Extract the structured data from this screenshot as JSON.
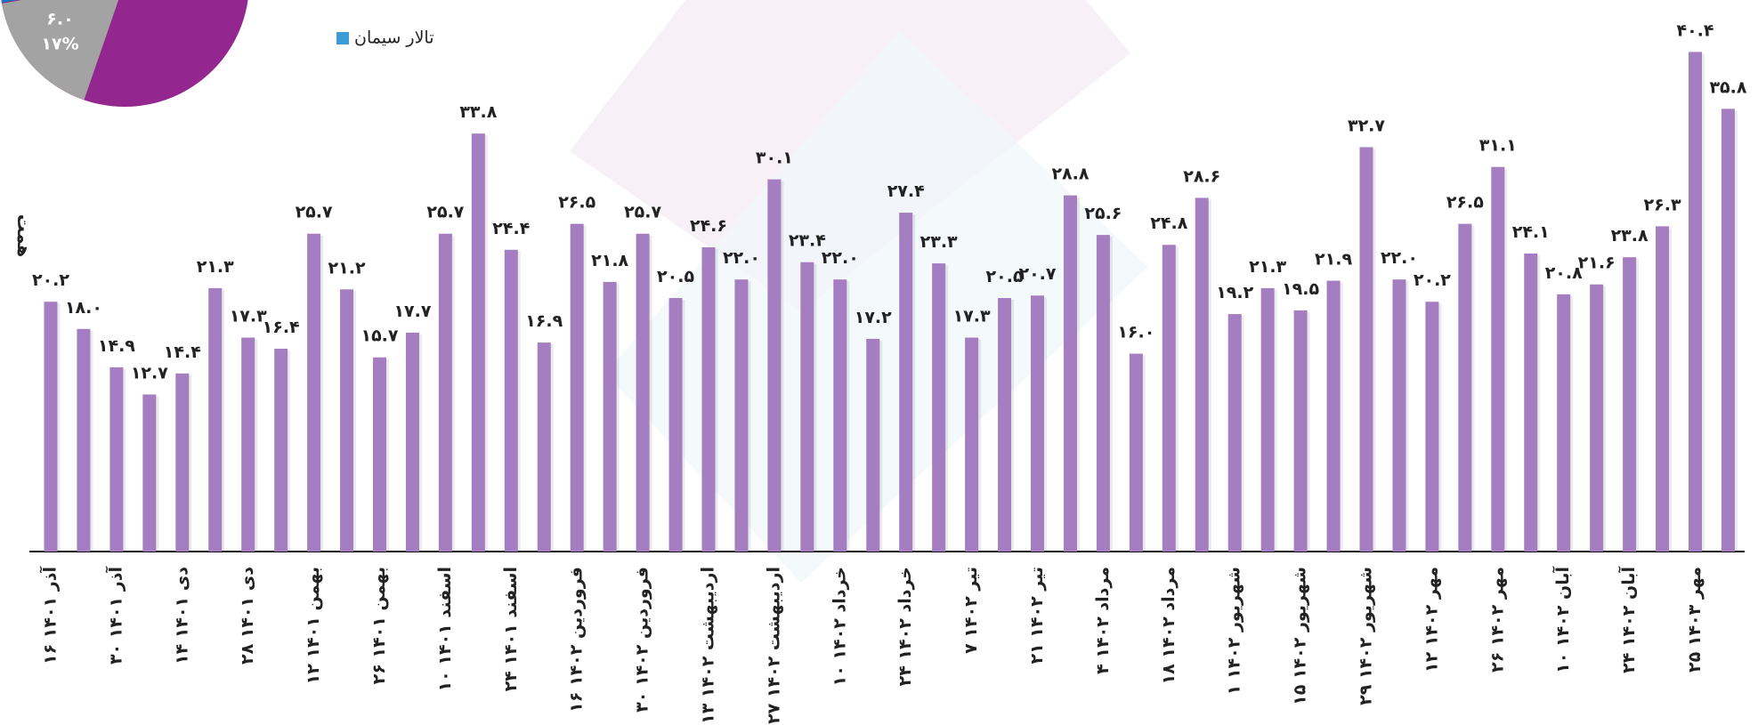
{
  "chart_data": [
    {
      "type": "bar",
      "y_label": "همت",
      "color": "#a57dc1",
      "ylim": [
        0,
        44.6
      ],
      "categories": [
        "۱۶ آذر ۱۴۰۱",
        null,
        "۳۰ آذر ۱۴۰۱",
        null,
        "۱۴ دی ۱۴۰۱",
        null,
        "۲۸ دی ۱۴۰۱",
        null,
        "۱۲ بهمن ۱۴۰۱",
        null,
        "۲۶ بهمن ۱۴۰۱",
        null,
        "۱۰ اسفند ۱۴۰۱",
        null,
        "۲۴ اسفند ۱۴۰۱",
        null,
        "۱۶ فروردین ۱۴۰۲",
        null,
        "۳۰ فروردین ۱۴۰۲",
        null,
        "۱۳ اردیبهشت ۱۴۰۲",
        null,
        "۲۷ اردیبهشت ۱۴۰۲",
        null,
        "۱۰ خرداد ۱۴۰۲",
        null,
        "۲۴ خرداد ۱۴۰۲",
        null,
        "۷ تیر ۱۴۰۲",
        null,
        "۲۱ تیر ۱۴۰۲",
        null,
        "۴ مرداد ۱۴۰۲",
        null,
        "۱۸ مرداد ۱۴۰۲",
        null,
        "۱ شهریور ۱۴۰۲",
        null,
        "۱۵ شهریور ۱۴۰۲",
        null,
        "۲۹ شهریور ۱۴۰۲",
        null,
        "۱۲ مهر ۱۴۰۲",
        null,
        "۲۶ مهر ۱۴۰۲",
        null,
        "۱۰ آبان ۱۴۰۲",
        null,
        "۲۴ آبان ۱۴۰۲",
        null,
        "۲۵ مهر ۱۴۰۳",
        null
      ],
      "values": [
        20.2,
        18.0,
        14.9,
        12.7,
        14.4,
        21.3,
        17.3,
        16.4,
        25.7,
        21.2,
        15.7,
        17.7,
        25.7,
        33.8,
        24.4,
        16.9,
        26.5,
        21.8,
        25.7,
        20.5,
        24.6,
        22.0,
        30.1,
        23.4,
        22.0,
        17.2,
        27.4,
        23.3,
        17.3,
        20.5,
        20.7,
        28.8,
        25.6,
        16.0,
        24.8,
        28.6,
        19.2,
        21.3,
        19.5,
        21.9,
        32.7,
        22.0,
        20.2,
        26.5,
        31.1,
        24.1,
        20.8,
        21.6,
        23.8,
        26.3,
        40.4,
        35.8
      ],
      "value_labels": [
        "۲۰.۲",
        "۱۸.۰",
        "۱۴.۹",
        "۱۲.۷",
        "۱۴.۴",
        "۲۱.۳",
        "۱۷.۳",
        "۱۶.۴",
        "۲۵.۷",
        "۲۱.۲",
        "۱۵.۷",
        "۱۷.۷",
        "۲۵.۷",
        "۳۳.۸",
        "۲۴.۴",
        "۱۶.۹",
        "۲۶.۵",
        "۲۱.۸",
        "۲۵.۷",
        "۲۰.۵",
        "۲۴.۶",
        "۲۲.۰",
        "۳۰.۱",
        "۲۳.۴",
        "۲۲.۰",
        "۱۷.۲",
        "۲۷.۴",
        "۲۳.۳",
        "۱۷.۳",
        "۲۰.۵",
        "۲۰.۷",
        "۲۸.۸",
        "۲۵.۶",
        "۱۶.۰",
        "۲۴.۸",
        "۲۸.۶",
        "۱۹.۲",
        "۲۱.۳",
        "۱۹.۵",
        "۲۱.۹",
        "۳۲.۷",
        "۲۲.۰",
        "۲۰.۲",
        "۲۶.۵",
        "۳۱.۱",
        "۲۴.۱",
        "۲۰.۸",
        "۲۱.۶",
        "۲۳.۸",
        "۲۶.۳",
        "۴۰.۴",
        "۳۵.۸"
      ]
    },
    {
      "type": "pie",
      "values": [
        17
      ],
      "value_labels": [
        "۱۷%"
      ],
      "amounts": [
        6.0
      ],
      "amount_labels": [
        "۶.۰"
      ],
      "colors": [
        "#a3a3a3"
      ],
      "legend": [
        {
          "name": "تالار سیمان",
          "color": "#3d9bd6"
        }
      ]
    }
  ]
}
